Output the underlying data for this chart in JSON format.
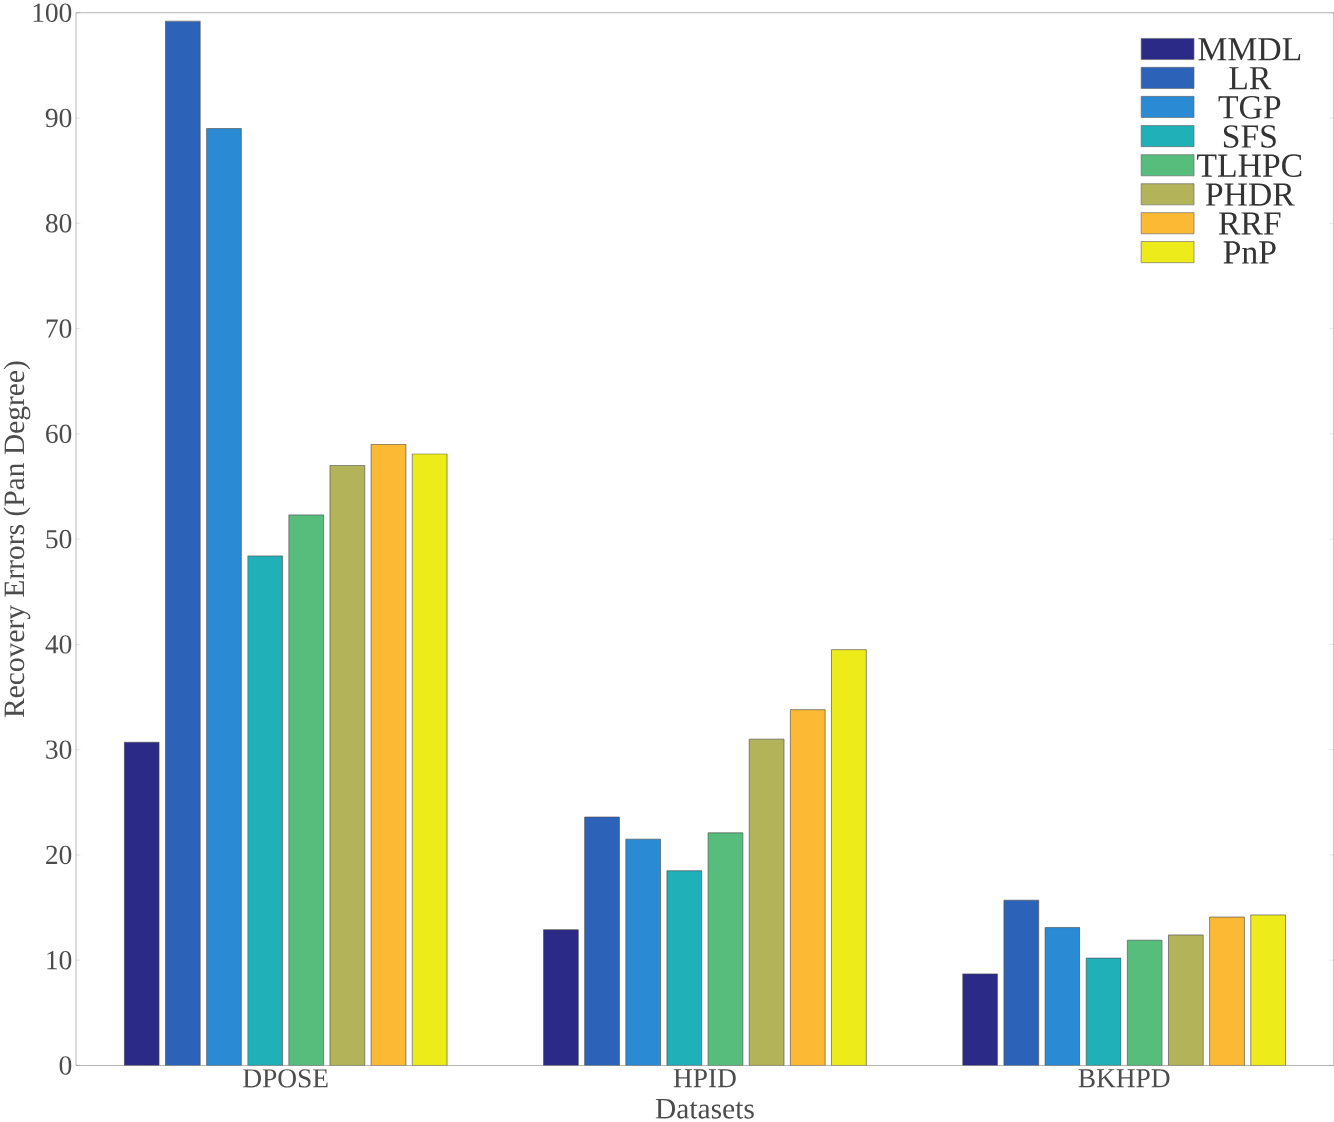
{
  "chart_data": {
    "type": "bar",
    "xlabel": "Datasets",
    "ylabel": "Recovery Errors (Pan Degree)",
    "categories": [
      "DPOSE",
      "HPID",
      "BKHPD"
    ],
    "series": [
      {
        "name": "MMDL",
        "color": "#2b2a87",
        "values": [
          30.7,
          12.9,
          8.7
        ]
      },
      {
        "name": "LR",
        "color": "#2c63b8",
        "values": [
          99.2,
          23.6,
          15.7
        ]
      },
      {
        "name": "TGP",
        "color": "#2a8ad4",
        "values": [
          89.0,
          21.5,
          13.1
        ]
      },
      {
        "name": "SFS",
        "color": "#1fb0b8",
        "values": [
          48.4,
          18.5,
          10.2
        ]
      },
      {
        "name": "TLHPC",
        "color": "#56bd7c",
        "values": [
          52.3,
          22.1,
          11.9
        ]
      },
      {
        "name": "PHDR",
        "color": "#b3b35a",
        "values": [
          57.0,
          31.0,
          12.4
        ]
      },
      {
        "name": "RRF",
        "color": "#fbb934",
        "values": [
          59.0,
          33.8,
          14.1
        ]
      },
      {
        "name": "PnP",
        "color": "#eeeb1b",
        "values": [
          58.1,
          39.5,
          14.3
        ]
      }
    ],
    "ylim": [
      0,
      100
    ],
    "yticks": [
      0,
      10,
      20,
      30,
      40,
      50,
      60,
      70,
      80,
      90,
      100
    ],
    "legend": "top right",
    "grid": false
  }
}
